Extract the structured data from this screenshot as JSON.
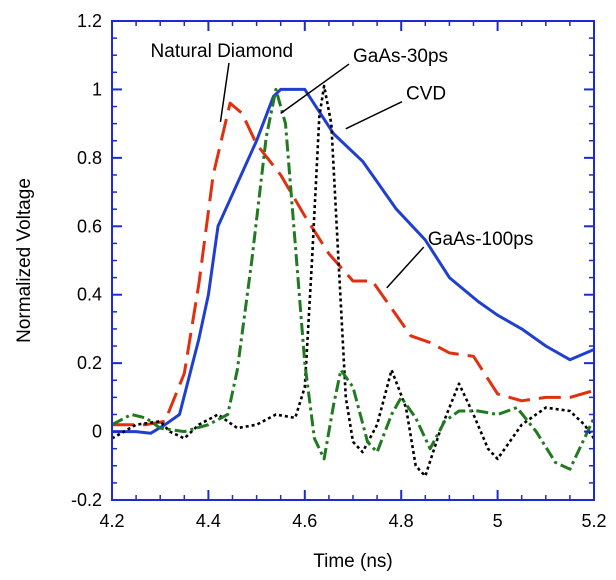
{
  "chart_data": {
    "type": "line",
    "title": "",
    "xlabel": "Time (ns)",
    "ylabel": "Normalized Voltage",
    "xlim": [
      4.2,
      5.2
    ],
    "ylim": [
      -0.2,
      1.2
    ],
    "x_ticks": [
      4.2,
      4.4,
      4.6,
      4.8,
      5,
      5.2
    ],
    "x_tick_labels": [
      "4.2",
      "4.4",
      "4.6",
      "4.8",
      "5",
      "5.2"
    ],
    "y_ticks": [
      -0.2,
      0,
      0.2,
      0.4,
      0.6,
      0.8,
      1,
      1.2
    ],
    "y_tick_labels": [
      "-0.2",
      "0",
      "0.2",
      "0.4",
      "0.6",
      "0.8",
      "1",
      "1.2"
    ],
    "grid": false,
    "frame_color": "#1a2bd6",
    "series": [
      {
        "name": "CVD",
        "color": "#1f3fd0",
        "dash": "solid",
        "points": [
          [
            4.2,
            0.0
          ],
          [
            4.25,
            0.0
          ],
          [
            4.28,
            -0.005
          ],
          [
            4.31,
            0.02
          ],
          [
            4.34,
            0.05
          ],
          [
            4.38,
            0.27
          ],
          [
            4.4,
            0.4
          ],
          [
            4.42,
            0.6
          ],
          [
            4.5,
            0.85
          ],
          [
            4.535,
            0.98
          ],
          [
            4.55,
            1.0
          ],
          [
            4.59,
            1.0
          ],
          [
            4.6,
            1.0
          ],
          [
            4.66,
            0.87
          ],
          [
            4.72,
            0.79
          ],
          [
            4.75,
            0.73
          ],
          [
            4.79,
            0.65
          ],
          [
            4.85,
            0.56
          ],
          [
            4.9,
            0.45
          ],
          [
            4.96,
            0.38
          ],
          [
            5.0,
            0.34
          ],
          [
            5.05,
            0.3
          ],
          [
            5.1,
            0.25
          ],
          [
            5.15,
            0.21
          ],
          [
            5.2,
            0.24
          ]
        ]
      },
      {
        "name": "Natural Diamond",
        "color": "#e03010",
        "dash": "long-dash",
        "points": [
          [
            4.2,
            0.02
          ],
          [
            4.27,
            0.02
          ],
          [
            4.31,
            0.03
          ],
          [
            4.35,
            0.17
          ],
          [
            4.38,
            0.43
          ],
          [
            4.41,
            0.75
          ],
          [
            4.445,
            0.96
          ],
          [
            4.47,
            0.93
          ],
          [
            4.5,
            0.84
          ],
          [
            4.55,
            0.75
          ],
          [
            4.6,
            0.63
          ],
          [
            4.65,
            0.52
          ],
          [
            4.7,
            0.44
          ],
          [
            4.74,
            0.44
          ],
          [
            4.78,
            0.36
          ],
          [
            4.82,
            0.28
          ],
          [
            4.86,
            0.26
          ],
          [
            4.9,
            0.23
          ],
          [
            4.95,
            0.22
          ],
          [
            5.0,
            0.11
          ],
          [
            5.05,
            0.09
          ],
          [
            5.1,
            0.1
          ],
          [
            5.15,
            0.1
          ],
          [
            5.2,
            0.12
          ]
        ]
      },
      {
        "name": "GaAs-30ps",
        "color": "#000000",
        "dash": "dotted",
        "points": [
          [
            4.2,
            -0.02
          ],
          [
            4.25,
            0.02
          ],
          [
            4.3,
            0.03
          ],
          [
            4.32,
            0.0
          ],
          [
            4.35,
            -0.02
          ],
          [
            4.38,
            0.02
          ],
          [
            4.42,
            0.05
          ],
          [
            4.46,
            0.01
          ],
          [
            4.5,
            0.02
          ],
          [
            4.54,
            0.05
          ],
          [
            4.58,
            0.04
          ],
          [
            4.6,
            0.13
          ],
          [
            4.615,
            0.5
          ],
          [
            4.63,
            0.92
          ],
          [
            4.64,
            1.01
          ],
          [
            4.655,
            0.9
          ],
          [
            4.67,
            0.5
          ],
          [
            4.685,
            0.1
          ],
          [
            4.7,
            -0.03
          ],
          [
            4.72,
            -0.06
          ],
          [
            4.75,
            0.02
          ],
          [
            4.78,
            0.18
          ],
          [
            4.81,
            0.07
          ],
          [
            4.83,
            -0.1
          ],
          [
            4.85,
            -0.13
          ],
          [
            4.88,
            0.0
          ],
          [
            4.92,
            0.14
          ],
          [
            4.95,
            0.05
          ],
          [
            4.98,
            -0.05
          ],
          [
            5.0,
            -0.08
          ],
          [
            5.05,
            0.02
          ],
          [
            5.1,
            0.07
          ],
          [
            5.15,
            0.06
          ],
          [
            5.18,
            0.02
          ],
          [
            5.2,
            -0.02
          ]
        ]
      },
      {
        "name": "GaAs-100ps",
        "color": "#207a20",
        "dash": "dash-dot",
        "points": [
          [
            4.2,
            0.02
          ],
          [
            4.24,
            0.05
          ],
          [
            4.27,
            0.04
          ],
          [
            4.3,
            0.01
          ],
          [
            4.35,
            0.0
          ],
          [
            4.4,
            0.02
          ],
          [
            4.44,
            0.05
          ],
          [
            4.46,
            0.18
          ],
          [
            4.49,
            0.5
          ],
          [
            4.52,
            0.86
          ],
          [
            4.54,
            1.0
          ],
          [
            4.56,
            0.9
          ],
          [
            4.58,
            0.55
          ],
          [
            4.6,
            0.2
          ],
          [
            4.62,
            -0.02
          ],
          [
            4.64,
            -0.08
          ],
          [
            4.66,
            0.08
          ],
          [
            4.675,
            0.18
          ],
          [
            4.7,
            0.13
          ],
          [
            4.73,
            -0.03
          ],
          [
            4.75,
            -0.06
          ],
          [
            4.78,
            0.05
          ],
          [
            4.8,
            0.1
          ],
          [
            4.83,
            0.04
          ],
          [
            4.86,
            -0.05
          ],
          [
            4.89,
            0.03
          ],
          [
            4.92,
            0.06
          ],
          [
            4.96,
            0.06
          ],
          [
            5.0,
            0.05
          ],
          [
            5.04,
            0.07
          ],
          [
            5.08,
            0.0
          ],
          [
            5.12,
            -0.09
          ],
          [
            5.15,
            -0.11
          ],
          [
            5.18,
            -0.02
          ],
          [
            5.2,
            0.04
          ]
        ]
      }
    ],
    "annotations": [
      {
        "text": "Natural Diamond",
        "tx": 4.28,
        "ty": 1.095,
        "ax": 4.425,
        "ay": 0.905
      },
      {
        "text": "GaAs-30ps",
        "tx": 4.7,
        "ty": 1.08,
        "ax": 4.55,
        "ay": 0.93
      },
      {
        "text": "CVD",
        "tx": 4.81,
        "ty": 0.97,
        "ax": 4.685,
        "ay": 0.885
      },
      {
        "text": "GaAs-100ps",
        "tx": 4.855,
        "ty": 0.545,
        "ax": 4.77,
        "ay": 0.42
      }
    ]
  }
}
